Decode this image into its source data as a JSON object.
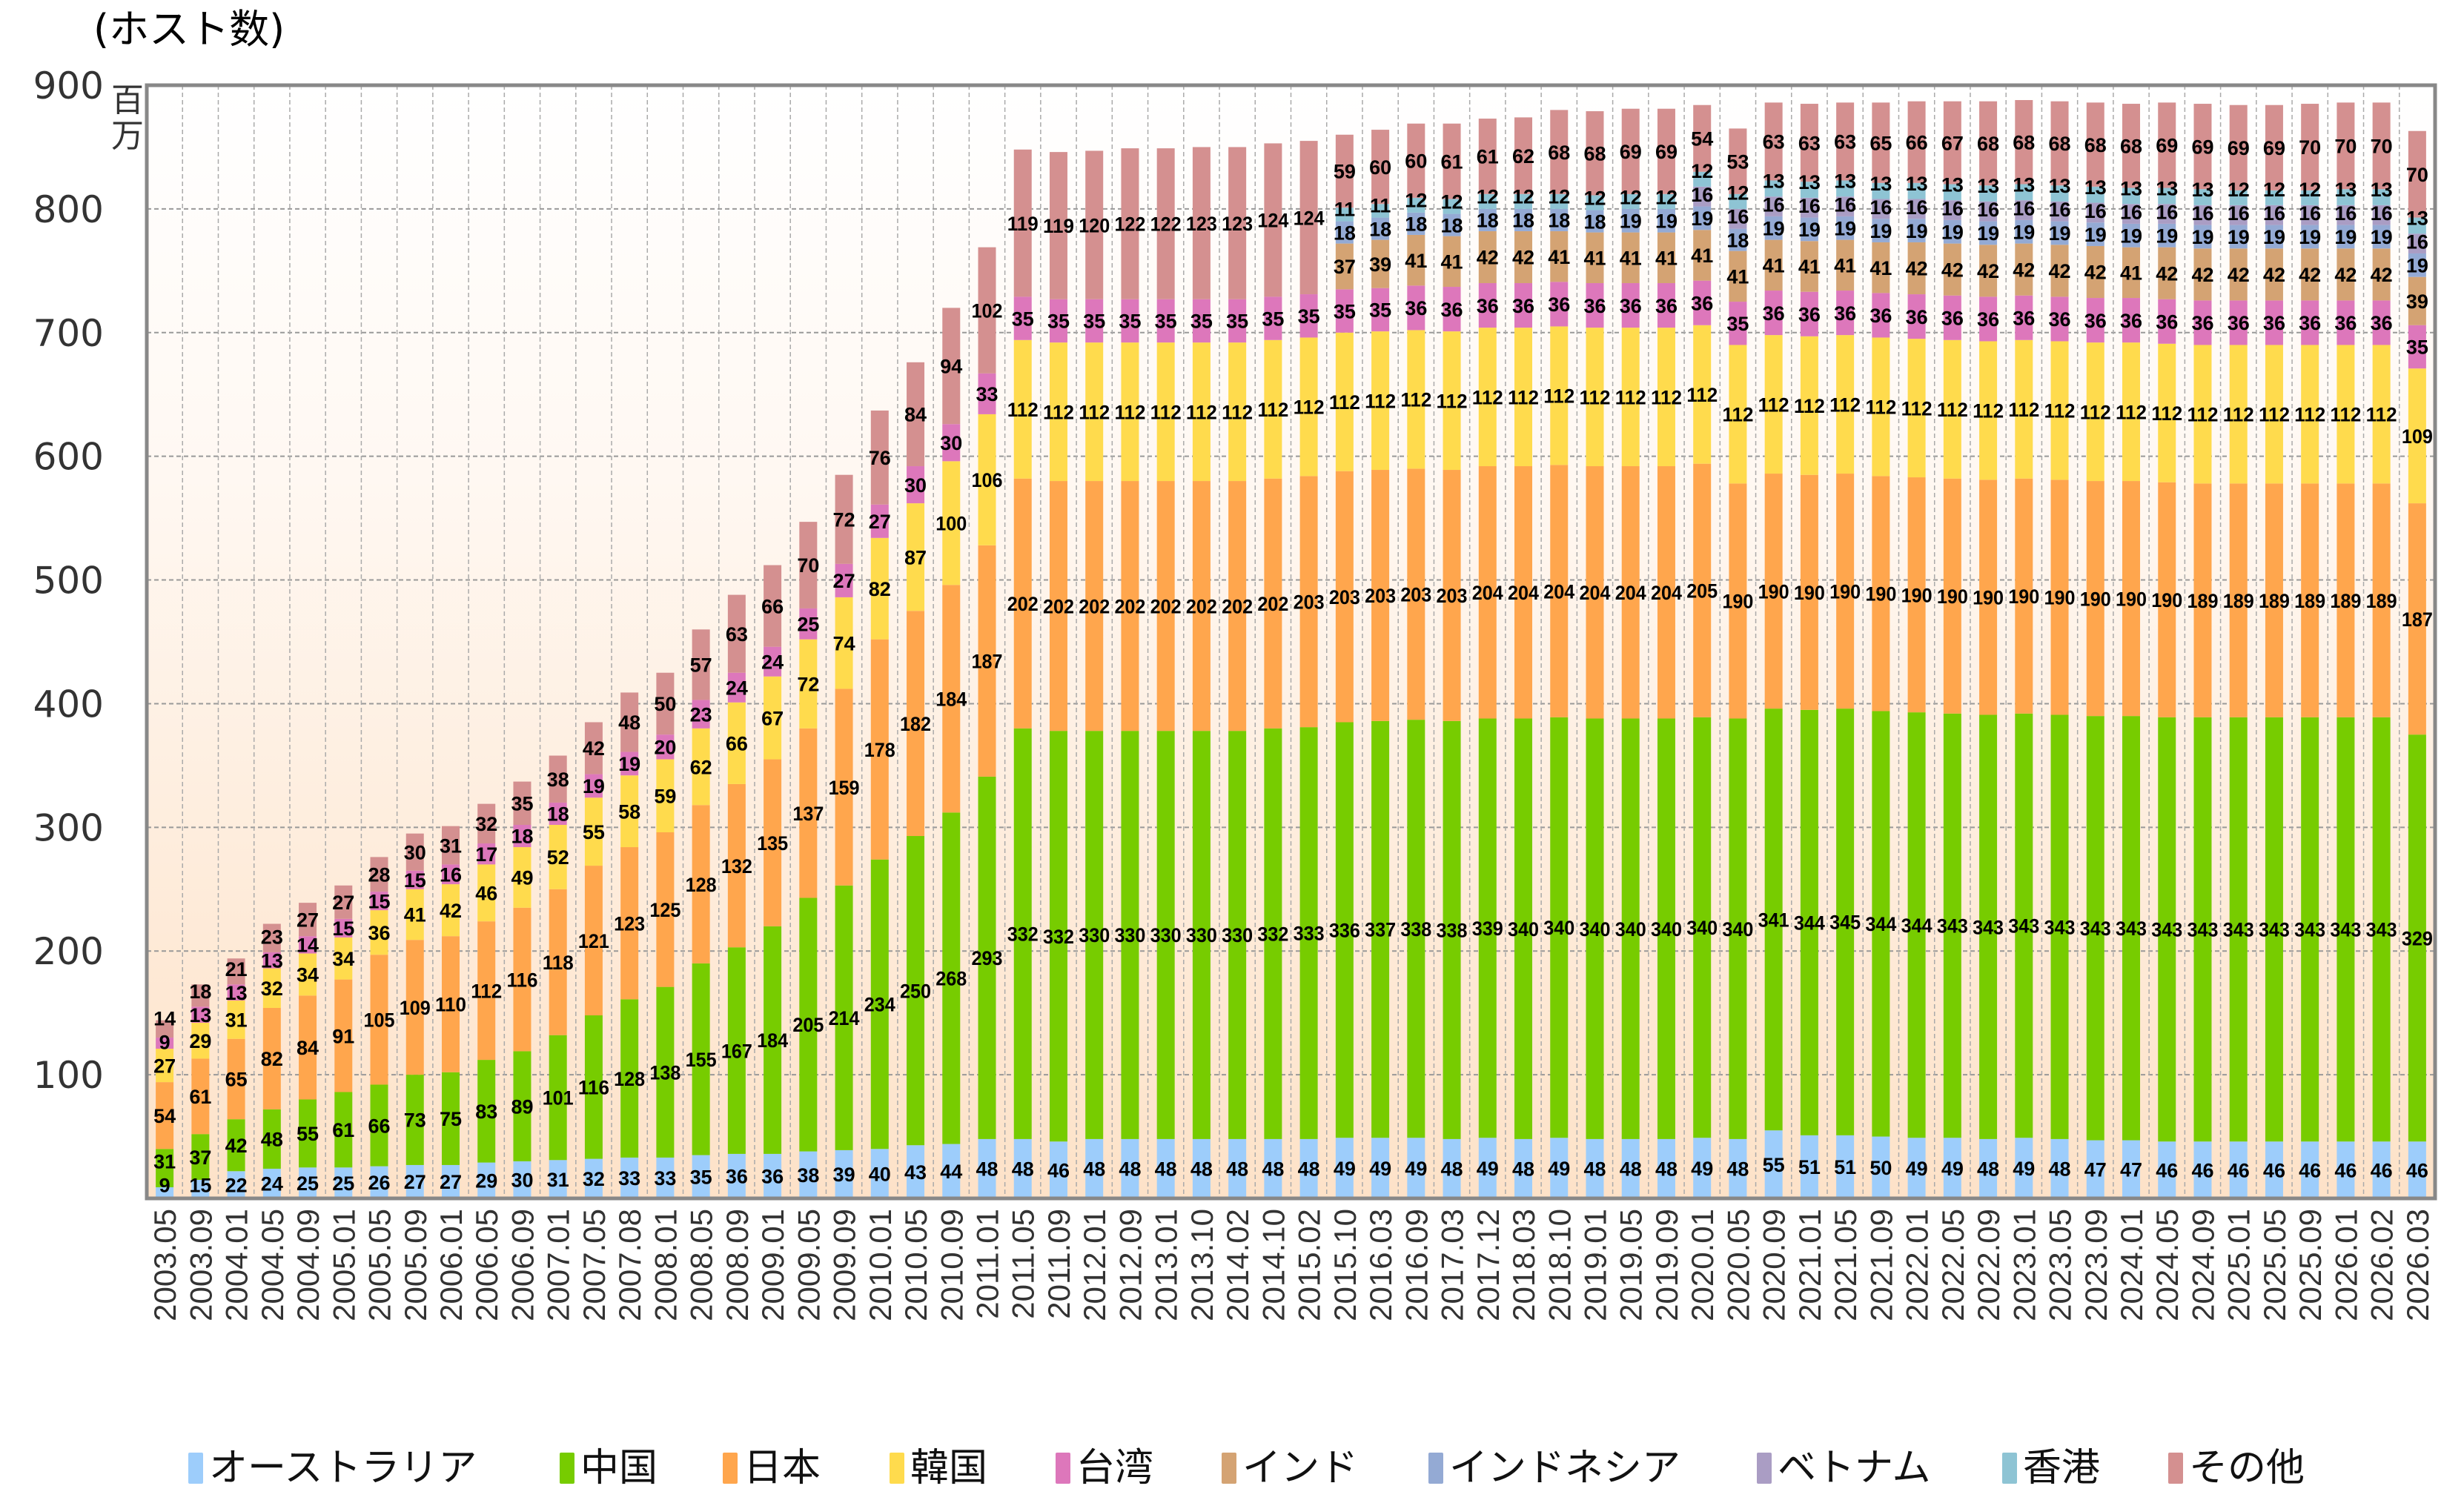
{
  "chart_data": {
    "type": "bar",
    "stacked": true,
    "title": "",
    "ylabel": "(ホスト数)",
    "yunit": "百万",
    "ylim": [
      0,
      900
    ],
    "yticks": [
      100,
      200,
      300,
      400,
      500,
      600,
      700,
      800,
      900
    ],
    "grid": true,
    "legend_position": "bottom",
    "categories": [
      "2003.05",
      "2003.09",
      "2004.01",
      "2004.05",
      "2004.09",
      "2005.01",
      "2005.05",
      "2005.09",
      "2006.01",
      "2006.05",
      "2006.09",
      "2007.01",
      "2007.05",
      "2007.08",
      "2008.01",
      "2008.05",
      "2008.09",
      "2009.01",
      "2009.05",
      "2009.09",
      "2010.01",
      "2010.05",
      "2010.09",
      "2011.01",
      "2011.05",
      "2011.09",
      "2012.01",
      "2012.09",
      "2013.01",
      "2013.10",
      "2014.02",
      "2014.10",
      "2015.02",
      "2015.10",
      "2016.03",
      "2016.09",
      "2017.03",
      "2017.12",
      "2018.03",
      "2018.10",
      "2019.01",
      "2019.05",
      "2019.09",
      "2020.01",
      "2020.05",
      "2020.09",
      "2021.01",
      "2021.05",
      "2021.09",
      "2022.01",
      "2022.05",
      "2022.09",
      "2023.01",
      "2023.05",
      "2023.09",
      "2024.01",
      "2024.05",
      "2024.09",
      "2025.01",
      "2025.05",
      "2025.09",
      "2026.01",
      "2026.02",
      "2026.03"
    ],
    "series": [
      {
        "name": "オーストラリア",
        "color": "#9dcdfb",
        "values": [
          9,
          15,
          22,
          24,
          25,
          25,
          26,
          27,
          27,
          29,
          30,
          31,
          32,
          33,
          33,
          35,
          36,
          36,
          38,
          39,
          40,
          43,
          44,
          48,
          48,
          46,
          48,
          48,
          48,
          48,
          48,
          48,
          48,
          49,
          49,
          49,
          48,
          49,
          48,
          49,
          48,
          48,
          48,
          49,
          48,
          55,
          51,
          51,
          50,
          49,
          49,
          48,
          49,
          48,
          47,
          47,
          46,
          46,
          46,
          46,
          46,
          46,
          46,
          46
        ]
      },
      {
        "name": "中国",
        "color": "#77cc00",
        "values": [
          31,
          37,
          42,
          48,
          55,
          61,
          66,
          73,
          75,
          83,
          89,
          101,
          116,
          128,
          138,
          155,
          167,
          184,
          205,
          214,
          234,
          250,
          268,
          293,
          332,
          332,
          330,
          330,
          330,
          330,
          330,
          332,
          333,
          336,
          337,
          338,
          338,
          339,
          340,
          340,
          340,
          340,
          340,
          340,
          340,
          341,
          344,
          345,
          344,
          344,
          343,
          343,
          343,
          343,
          343,
          343,
          343,
          343,
          343,
          343,
          343,
          343,
          343,
          329
        ]
      },
      {
        "name": "日本",
        "color": "#ffa64d",
        "values": [
          54,
          61,
          65,
          82,
          84,
          91,
          105,
          109,
          110,
          112,
          116,
          118,
          121,
          123,
          125,
          128,
          132,
          135,
          137,
          159,
          178,
          182,
          184,
          187,
          202,
          202,
          202,
          202,
          202,
          202,
          202,
          202,
          203,
          203,
          203,
          203,
          203,
          204,
          204,
          204,
          204,
          204,
          204,
          205,
          190,
          190,
          190,
          190,
          190,
          190,
          190,
          190,
          190,
          190,
          190,
          190,
          190,
          189,
          189,
          189,
          189,
          189,
          189,
          187
        ]
      },
      {
        "name": "韓国",
        "color": "#ffdb4d",
        "values": [
          27,
          29,
          31,
          32,
          34,
          34,
          36,
          41,
          42,
          46,
          49,
          52,
          55,
          58,
          59,
          62,
          66,
          67,
          72,
          74,
          82,
          87,
          100,
          106,
          112,
          112,
          112,
          112,
          112,
          112,
          112,
          112,
          112,
          112,
          112,
          112,
          112,
          112,
          112,
          112,
          112,
          112,
          112,
          112,
          112,
          112,
          112,
          112,
          112,
          112,
          112,
          112,
          112,
          112,
          112,
          112,
          112,
          112,
          112,
          112,
          112,
          112,
          112,
          109
        ]
      },
      {
        "name": "台湾",
        "color": "#dd77bb",
        "values": [
          9,
          13,
          13,
          13,
          14,
          15,
          15,
          15,
          16,
          17,
          18,
          18,
          19,
          19,
          20,
          23,
          24,
          24,
          25,
          27,
          27,
          30,
          30,
          33,
          35,
          35,
          35,
          35,
          35,
          35,
          35,
          35,
          35,
          35,
          35,
          36,
          36,
          36,
          36,
          36,
          36,
          36,
          36,
          36,
          35,
          36,
          36,
          36,
          36,
          36,
          36,
          36,
          36,
          36,
          36,
          36,
          36,
          36,
          36,
          36,
          36,
          36,
          36,
          35
        ]
      },
      {
        "name": "インド",
        "color": "#d4a373",
        "values": [
          null,
          null,
          null,
          null,
          null,
          null,
          null,
          null,
          null,
          null,
          null,
          null,
          null,
          null,
          null,
          null,
          null,
          null,
          null,
          null,
          null,
          null,
          null,
          null,
          null,
          null,
          null,
          null,
          null,
          null,
          null,
          null,
          null,
          37,
          39,
          41,
          41,
          42,
          42,
          41,
          41,
          41,
          41,
          41,
          41,
          41,
          41,
          41,
          41,
          42,
          42,
          42,
          42,
          42,
          42,
          41,
          42,
          42,
          42,
          42,
          42,
          42,
          42,
          39
        ]
      },
      {
        "name": "インドネシア",
        "color": "#94aad4",
        "values": [
          null,
          null,
          null,
          null,
          null,
          null,
          null,
          null,
          null,
          null,
          null,
          null,
          null,
          null,
          null,
          null,
          null,
          null,
          null,
          null,
          null,
          null,
          null,
          null,
          null,
          null,
          null,
          null,
          null,
          null,
          null,
          null,
          null,
          18,
          18,
          18,
          18,
          18,
          18,
          18,
          18,
          19,
          19,
          19,
          18,
          19,
          19,
          19,
          19,
          19,
          19,
          19,
          19,
          19,
          19,
          19,
          19,
          19,
          19,
          19,
          19,
          19,
          19,
          19
        ]
      },
      {
        "name": "ベトナム",
        "color": "#aa9dc4",
        "values": [
          null,
          null,
          null,
          null,
          null,
          null,
          null,
          null,
          null,
          null,
          null,
          null,
          null,
          null,
          null,
          null,
          null,
          null,
          null,
          null,
          null,
          null,
          null,
          null,
          null,
          null,
          null,
          null,
          null,
          null,
          null,
          null,
          null,
          null,
          null,
          null,
          null,
          null,
          null,
          null,
          null,
          null,
          null,
          16,
          16,
          16,
          16,
          16,
          16,
          16,
          16,
          16,
          16,
          16,
          16,
          16,
          16,
          16,
          16,
          16,
          16,
          16,
          16,
          16
        ]
      },
      {
        "name": "香港",
        "color": "#8ec4d4",
        "values": [
          null,
          null,
          null,
          null,
          null,
          null,
          null,
          null,
          null,
          null,
          null,
          null,
          null,
          null,
          null,
          null,
          null,
          null,
          null,
          null,
          null,
          null,
          null,
          null,
          null,
          null,
          null,
          null,
          null,
          null,
          null,
          null,
          null,
          11,
          11,
          12,
          12,
          12,
          12,
          12,
          12,
          12,
          12,
          12,
          12,
          13,
          13,
          13,
          13,
          13,
          13,
          13,
          13,
          13,
          13,
          13,
          13,
          13,
          12,
          12,
          12,
          13,
          13,
          13
        ]
      },
      {
        "name": "その他",
        "color": "#d49090",
        "values": [
          14,
          18,
          21,
          23,
          27,
          27,
          28,
          30,
          31,
          32,
          35,
          38,
          42,
          48,
          50,
          57,
          63,
          66,
          70,
          72,
          76,
          84,
          94,
          102,
          119,
          119,
          120,
          122,
          122,
          123,
          123,
          124,
          124,
          59,
          60,
          60,
          61,
          61,
          62,
          68,
          68,
          69,
          69,
          54,
          53,
          63,
          63,
          63,
          65,
          66,
          67,
          68,
          68,
          68,
          68,
          68,
          69,
          69,
          69,
          69,
          70,
          70,
          70,
          70
        ]
      }
    ]
  }
}
